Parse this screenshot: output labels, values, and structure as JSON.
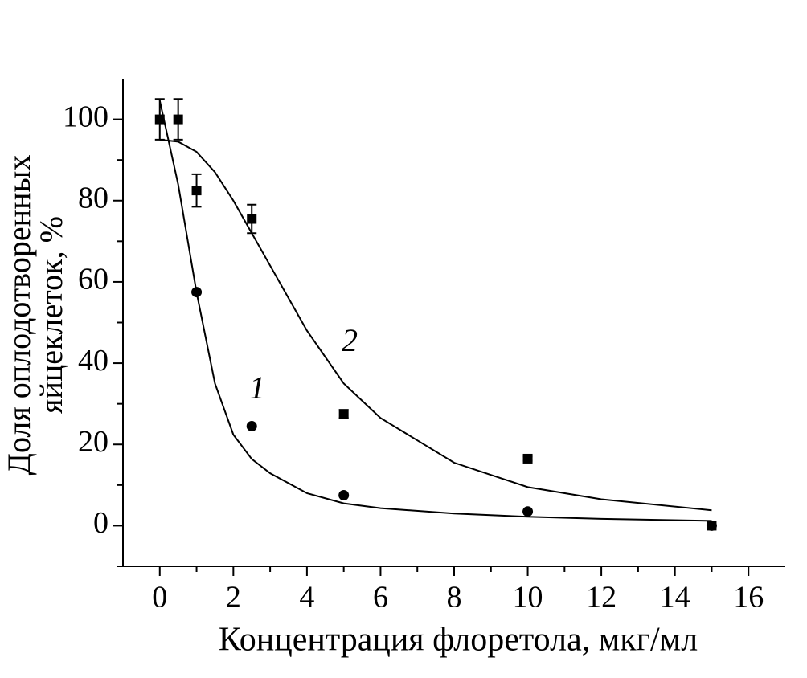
{
  "chart_data": {
    "type": "scatter",
    "x_label": "Концентрация флоретола, мкг/мл",
    "y_label": [
      "Доля оплодотворенных",
      "яйцеклеток, %"
    ],
    "annotations": [
      "1",
      "2"
    ],
    "xlim": [
      -1,
      17
    ],
    "ylim": [
      -10,
      110
    ],
    "xticks": [
      0,
      2,
      4,
      6,
      8,
      10,
      12,
      14,
      16
    ],
    "yticks": [
      0,
      20,
      40,
      60,
      80,
      100
    ],
    "x_minor_ticks": [
      1,
      3,
      5,
      7,
      9,
      11,
      13,
      15
    ],
    "y_minor_ticks": [
      -10,
      10,
      30,
      50,
      70,
      90
    ],
    "color": "#000000",
    "series": [
      {
        "marker": "circle",
        "x": [
          1,
          2.5,
          5,
          10,
          15
        ],
        "values": [
          57.5,
          24.5,
          7.5,
          3.5,
          0
        ]
      },
      {
        "marker": "square",
        "x": [
          0,
          0.5,
          1,
          2.5,
          5,
          10,
          15
        ],
        "values": [
          100,
          100,
          82.5,
          75.5,
          27.5,
          16.5,
          0
        ],
        "errors": [
          5,
          5,
          4,
          3.5,
          1,
          0.5,
          null
        ]
      }
    ],
    "fits": [
      {
        "x": [
          0,
          0.5,
          1,
          1.5,
          2,
          2.5,
          3,
          4,
          5,
          6,
          8,
          10,
          12,
          15
        ],
        "values": [
          104.6,
          84,
          57.4,
          35,
          22.4,
          16.4,
          12.9,
          8,
          5.5,
          4.3,
          3,
          2.2,
          1.7,
          1.2
        ]
      },
      {
        "x": [
          0,
          0.5,
          1,
          1.5,
          2,
          2.5,
          3,
          4,
          5,
          6,
          8,
          10,
          12,
          15
        ],
        "values": [
          95,
          94.5,
          92,
          87,
          80,
          72,
          64,
          48,
          35,
          26.5,
          15.5,
          9.5,
          6.5,
          3.8
        ]
      }
    ]
  }
}
